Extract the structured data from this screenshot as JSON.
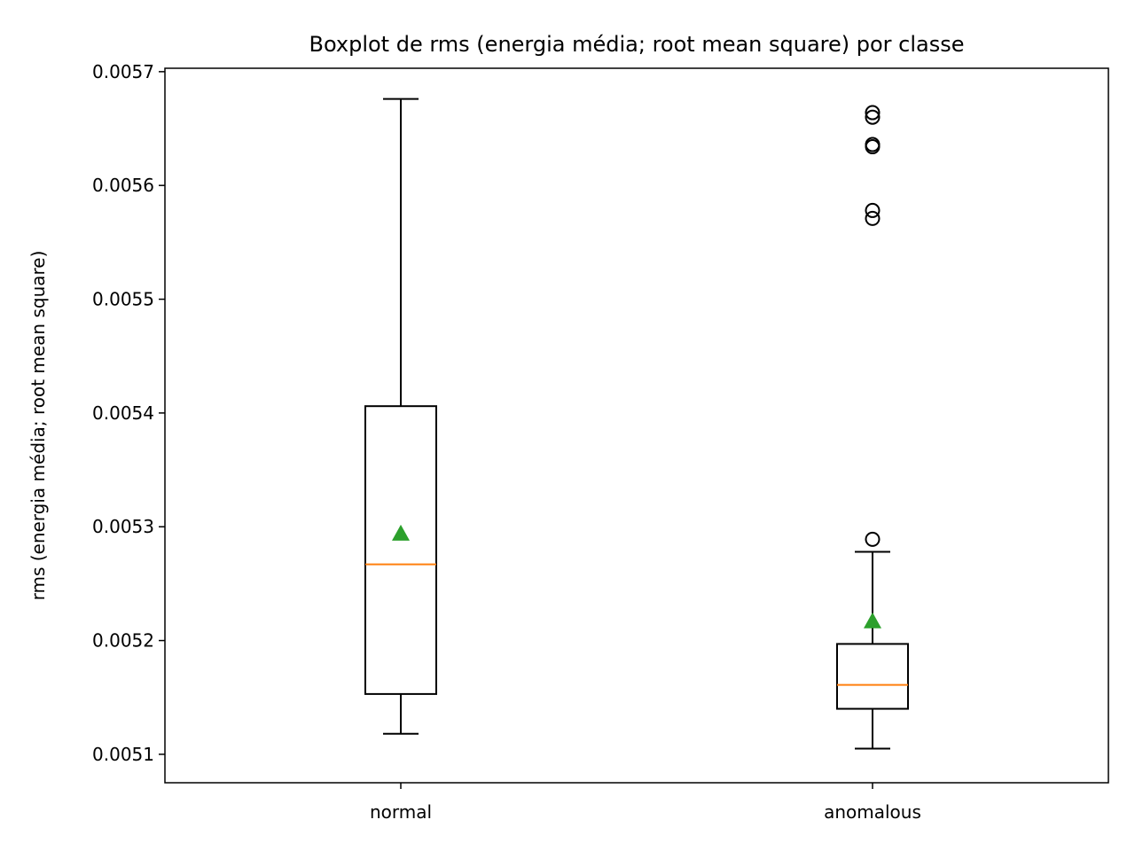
{
  "chart_data": {
    "type": "boxplot",
    "title": "Boxplot de rms (energia média; root mean square) por classe",
    "ylabel": "rms (energia média; root mean square)",
    "xlabel": "",
    "categories": [
      "normal",
      "anomalous"
    ],
    "ylim": [
      0.005075,
      0.005703
    ],
    "yticks": [
      0.0051,
      0.0052,
      0.0053,
      0.0054,
      0.0055,
      0.0056,
      0.0057
    ],
    "ytick_labels": [
      "0.0051",
      "0.0052",
      "0.0053",
      "0.0054",
      "0.0055",
      "0.0056",
      "0.0057"
    ],
    "grid": false,
    "colors": {
      "box": "#000000",
      "median": "#ff7f0e",
      "mean": "#2ca02c",
      "flier": "#000000"
    },
    "boxes": [
      {
        "category": "normal",
        "whisker_low": 0.005118,
        "q1": 0.005153,
        "median": 0.005267,
        "q3": 0.005406,
        "whisker_high": 0.005676,
        "mean": 0.005294,
        "fliers": []
      },
      {
        "category": "anomalous",
        "whisker_low": 0.005105,
        "q1": 0.00514,
        "median": 0.005161,
        "q3": 0.005197,
        "whisker_high": 0.005278,
        "mean": 0.005217,
        "fliers": [
          0.005289,
          0.005571,
          0.005578,
          0.005634,
          0.005636,
          0.00566,
          0.005664
        ]
      }
    ]
  }
}
